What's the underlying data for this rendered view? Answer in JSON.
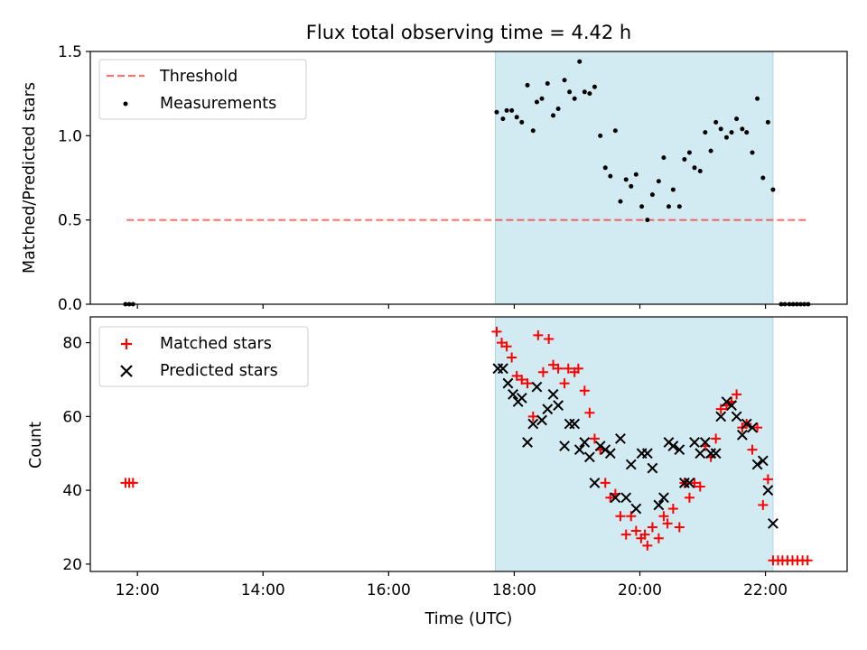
{
  "title": "Flux total observing time = 4.42 h",
  "colors": {
    "shade": "#add8e6",
    "threshold": "#ff0000",
    "matched": "#ff0000",
    "predicted": "#000000",
    "measurement": "#000000"
  },
  "chart_data": [
    {
      "type": "scatter",
      "ylabel": "Matched/Predicted stars",
      "xlim": [
        11.25,
        23.3
      ],
      "ylim": [
        0,
        1.5
      ],
      "yticks": [
        "0.0",
        "0.5",
        "1.0",
        "1.5"
      ],
      "x_tick_values": [
        12,
        14,
        16,
        18,
        20,
        22
      ],
      "shaded_span": [
        17.7,
        22.12
      ],
      "legend": [
        "Threshold",
        "Measurements"
      ],
      "legend_position": "top-left",
      "threshold": {
        "name": "Threshold",
        "value": 0.5,
        "x_range": [
          11.83,
          22.67
        ]
      },
      "series": [
        {
          "name": "Measurements",
          "points": [
            [
              11.81,
              0.0
            ],
            [
              11.87,
              0.0
            ],
            [
              11.93,
              0.0
            ],
            [
              17.72,
              1.14
            ],
            [
              17.82,
              1.1
            ],
            [
              17.88,
              1.15
            ],
            [
              17.96,
              1.15
            ],
            [
              18.04,
              1.11
            ],
            [
              18.12,
              1.08
            ],
            [
              18.21,
              1.3
            ],
            [
              18.3,
              1.03
            ],
            [
              18.36,
              1.2
            ],
            [
              18.44,
              1.22
            ],
            [
              18.53,
              1.31
            ],
            [
              18.62,
              1.12
            ],
            [
              18.7,
              1.16
            ],
            [
              18.8,
              1.33
            ],
            [
              18.88,
              1.26
            ],
            [
              18.96,
              1.22
            ],
            [
              19.04,
              1.44
            ],
            [
              19.12,
              1.26
            ],
            [
              19.2,
              1.25
            ],
            [
              19.28,
              1.29
            ],
            [
              19.37,
              1.0
            ],
            [
              19.45,
              0.81
            ],
            [
              19.53,
              0.76
            ],
            [
              19.61,
              1.03
            ],
            [
              19.69,
              0.61
            ],
            [
              19.78,
              0.74
            ],
            [
              19.86,
              0.7
            ],
            [
              19.94,
              0.77
            ],
            [
              20.03,
              0.58
            ],
            [
              20.12,
              0.5
            ],
            [
              20.2,
              0.65
            ],
            [
              20.3,
              0.73
            ],
            [
              20.38,
              0.87
            ],
            [
              20.46,
              0.58
            ],
            [
              20.53,
              0.68
            ],
            [
              20.63,
              0.58
            ],
            [
              20.71,
              0.86
            ],
            [
              20.79,
              0.9
            ],
            [
              20.87,
              0.81
            ],
            [
              20.96,
              0.79
            ],
            [
              21.04,
              1.02
            ],
            [
              21.13,
              0.91
            ],
            [
              21.21,
              1.08
            ],
            [
              21.29,
              1.04
            ],
            [
              21.38,
              0.99
            ],
            [
              21.46,
              1.02
            ],
            [
              21.54,
              1.1
            ],
            [
              21.63,
              1.04
            ],
            [
              21.7,
              1.02
            ],
            [
              21.79,
              0.9
            ],
            [
              21.87,
              1.22
            ],
            [
              21.96,
              0.75
            ],
            [
              22.04,
              1.08
            ],
            [
              22.12,
              0.68
            ],
            [
              22.25,
              0.0
            ],
            [
              22.31,
              0.0
            ],
            [
              22.38,
              0.0
            ],
            [
              22.44,
              0.0
            ],
            [
              22.5,
              0.0
            ],
            [
              22.56,
              0.0
            ],
            [
              22.62,
              0.0
            ],
            [
              22.68,
              0.0
            ]
          ]
        }
      ]
    },
    {
      "type": "scatter",
      "ylabel": "Count",
      "xlabel": "Time (UTC)",
      "xlim": [
        11.25,
        23.3
      ],
      "ylim": [
        18,
        87
      ],
      "yticks": [
        "20",
        "40",
        "60",
        "80"
      ],
      "x_tick_values": [
        12,
        14,
        16,
        18,
        20,
        22
      ],
      "xticks": [
        "12:00",
        "14:00",
        "16:00",
        "18:00",
        "20:00",
        "22:00"
      ],
      "shaded_span": [
        17.7,
        22.12
      ],
      "legend": [
        "Matched stars",
        "Predicted stars"
      ],
      "legend_position": "top-left",
      "series": [
        {
          "name": "Matched stars",
          "points": [
            [
              11.81,
              42
            ],
            [
              11.87,
              42
            ],
            [
              11.93,
              42
            ],
            [
              17.72,
              83
            ],
            [
              17.8,
              80
            ],
            [
              17.88,
              79
            ],
            [
              17.96,
              76
            ],
            [
              18.04,
              71
            ],
            [
              18.12,
              70
            ],
            [
              18.21,
              69
            ],
            [
              18.3,
              60
            ],
            [
              18.38,
              82
            ],
            [
              18.46,
              72
            ],
            [
              18.55,
              81
            ],
            [
              18.62,
              74
            ],
            [
              18.7,
              73
            ],
            [
              18.8,
              69
            ],
            [
              18.86,
              73
            ],
            [
              18.96,
              72
            ],
            [
              19.02,
              73
            ],
            [
              19.12,
              67
            ],
            [
              19.2,
              61
            ],
            [
              19.28,
              54
            ],
            [
              19.37,
              51
            ],
            [
              19.45,
              42
            ],
            [
              19.53,
              38
            ],
            [
              19.61,
              39
            ],
            [
              19.69,
              33
            ],
            [
              19.78,
              28
            ],
            [
              19.86,
              33
            ],
            [
              19.94,
              29
            ],
            [
              20.02,
              27
            ],
            [
              20.08,
              28
            ],
            [
              20.12,
              25
            ],
            [
              20.2,
              30
            ],
            [
              20.3,
              27
            ],
            [
              20.38,
              33
            ],
            [
              20.44,
              31
            ],
            [
              20.53,
              35
            ],
            [
              20.63,
              30
            ],
            [
              20.71,
              42
            ],
            [
              20.79,
              38
            ],
            [
              20.87,
              42
            ],
            [
              20.96,
              41
            ],
            [
              21.04,
              52
            ],
            [
              21.13,
              49
            ],
            [
              21.21,
              54
            ],
            [
              21.29,
              62
            ],
            [
              21.38,
              63
            ],
            [
              21.46,
              64
            ],
            [
              21.54,
              66
            ],
            [
              21.63,
              57
            ],
            [
              21.7,
              58
            ],
            [
              21.79,
              51
            ],
            [
              21.87,
              57
            ],
            [
              21.96,
              36
            ],
            [
              22.04,
              43
            ],
            [
              22.12,
              21
            ],
            [
              22.2,
              21
            ],
            [
              22.27,
              21
            ],
            [
              22.35,
              21
            ],
            [
              22.43,
              21
            ],
            [
              22.51,
              21
            ],
            [
              22.59,
              21
            ],
            [
              22.67,
              21
            ]
          ]
        },
        {
          "name": "Predicted stars",
          "points": [
            [
              17.74,
              73
            ],
            [
              17.82,
              73
            ],
            [
              17.9,
              69
            ],
            [
              17.98,
              66
            ],
            [
              18.06,
              64
            ],
            [
              18.12,
              65
            ],
            [
              18.21,
              53
            ],
            [
              18.3,
              58
            ],
            [
              18.36,
              68
            ],
            [
              18.44,
              59
            ],
            [
              18.53,
              62
            ],
            [
              18.62,
              66
            ],
            [
              18.7,
              63
            ],
            [
              18.8,
              52
            ],
            [
              18.88,
              58
            ],
            [
              18.96,
              58
            ],
            [
              19.04,
              51
            ],
            [
              19.12,
              53
            ],
            [
              19.2,
              49
            ],
            [
              19.28,
              42
            ],
            [
              19.37,
              52
            ],
            [
              19.45,
              51
            ],
            [
              19.53,
              50
            ],
            [
              19.61,
              38
            ],
            [
              19.69,
              54
            ],
            [
              19.78,
              38
            ],
            [
              19.86,
              47
            ],
            [
              19.94,
              35
            ],
            [
              20.03,
              50
            ],
            [
              20.12,
              50
            ],
            [
              20.2,
              46
            ],
            [
              20.3,
              36
            ],
            [
              20.38,
              38
            ],
            [
              20.46,
              53
            ],
            [
              20.53,
              52
            ],
            [
              20.63,
              51
            ],
            [
              20.71,
              42
            ],
            [
              20.79,
              42
            ],
            [
              20.87,
              53
            ],
            [
              20.96,
              50
            ],
            [
              21.04,
              53
            ],
            [
              21.13,
              50
            ],
            [
              21.21,
              50
            ],
            [
              21.29,
              60
            ],
            [
              21.38,
              64
            ],
            [
              21.46,
              63
            ],
            [
              21.54,
              60
            ],
            [
              21.63,
              55
            ],
            [
              21.7,
              58
            ],
            [
              21.79,
              57
            ],
            [
              21.87,
              47
            ],
            [
              21.96,
              48
            ],
            [
              22.04,
              40
            ],
            [
              22.12,
              31
            ]
          ]
        }
      ]
    }
  ]
}
